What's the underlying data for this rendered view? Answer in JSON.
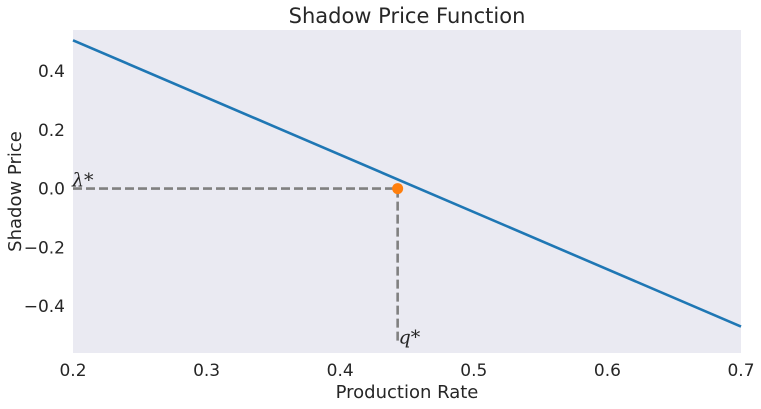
{
  "chart_data": {
    "type": "line",
    "title": "Shadow Price Function",
    "xlabel": "Production Rate",
    "ylabel": "Shadow Price",
    "xlim": [
      0.2,
      0.7
    ],
    "ylim": [
      -0.56,
      0.54
    ],
    "grid": false,
    "background": "#eaeaf2",
    "x_ticks": [
      0.2,
      0.3,
      0.4,
      0.5,
      0.6,
      0.7
    ],
    "x_tick_labels": [
      "0.2",
      "0.3",
      "0.4",
      "0.5",
      "0.6",
      "0.7"
    ],
    "y_ticks": [
      0.4,
      0.2,
      0.0,
      -0.2,
      -0.4
    ],
    "y_tick_labels": [
      "0.4",
      "0.2",
      "0.0",
      "−0.2",
      "−0.4"
    ],
    "series": [
      {
        "x": [
          0.2,
          0.7
        ],
        "y": [
          0.505,
          -0.47
        ],
        "color": "#1f77b4"
      }
    ],
    "point": {
      "x": 0.443,
      "y": 0.0,
      "color": "#ff7f0e"
    },
    "guides": {
      "color": "#808080",
      "y_floor": -0.52
    },
    "annotations": {
      "lambda_label": "λ*",
      "q_label": "q*"
    }
  }
}
